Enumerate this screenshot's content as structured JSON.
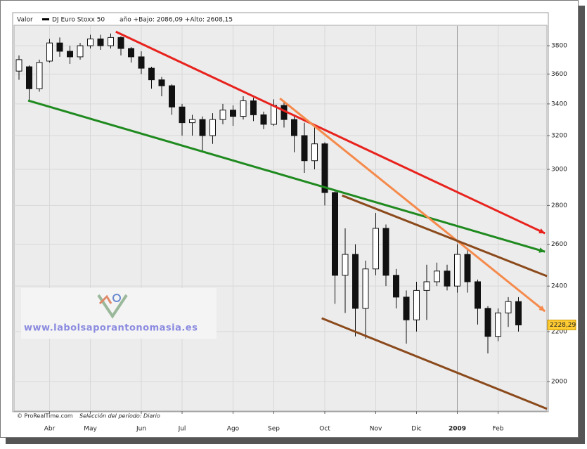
{
  "chart_data": {
    "type": "candlestick",
    "header_label": "Valor",
    "title": "DJ Euro Stoxx 50",
    "subtitle": "año +Bajo: 2086,09 +Alto: 2608,15",
    "categories": [
      null,
      null,
      null,
      "Abr",
      null,
      null,
      null,
      "May",
      null,
      null,
      null,
      null,
      "Jun",
      null,
      null,
      null,
      "Jul",
      null,
      null,
      null,
      null,
      "Ago",
      null,
      null,
      null,
      "Sep",
      null,
      null,
      null,
      null,
      "Oct",
      null,
      null,
      null,
      null,
      "Nov",
      null,
      null,
      null,
      "Dic",
      null,
      null,
      null,
      "2009",
      null,
      null,
      null,
      "Feb",
      null,
      null
    ],
    "open": [
      3620,
      3650,
      3500,
      3690,
      3820,
      3760,
      3720,
      3800,
      3850,
      3800,
      3860,
      3780,
      3720,
      3640,
      3560,
      3520,
      3380,
      3280,
      3300,
      3200,
      3300,
      3360,
      3320,
      3420,
      3330,
      3270,
      3390,
      3300,
      3200,
      3050,
      3150,
      2870,
      2450,
      2550,
      2300,
      2480,
      2680,
      2450,
      2350,
      2250,
      2380,
      2420,
      2470,
      2400,
      2550,
      2420,
      2300,
      2180,
      2280,
      2330
    ],
    "high": [
      3730,
      3660,
      3700,
      3850,
      3860,
      3800,
      3820,
      3880,
      3880,
      3890,
      3870,
      3790,
      3760,
      3650,
      3580,
      3530,
      3400,
      3330,
      3320,
      3340,
      3400,
      3390,
      3450,
      3440,
      3350,
      3430,
      3420,
      3320,
      3280,
      3250,
      3160,
      2880,
      2680,
      2600,
      2520,
      2760,
      2700,
      2480,
      2380,
      2420,
      2500,
      2510,
      2500,
      2600,
      2570,
      2430,
      2310,
      2300,
      2350,
      2350
    ],
    "low": [
      3560,
      3420,
      3480,
      3680,
      3720,
      3670,
      3700,
      3780,
      3770,
      3780,
      3730,
      3680,
      3600,
      3500,
      3450,
      3330,
      3200,
      3200,
      3100,
      3150,
      3270,
      3260,
      3300,
      3290,
      3240,
      3260,
      3250,
      3100,
      2980,
      3000,
      2800,
      2320,
      2280,
      2180,
      2170,
      2450,
      2400,
      2300,
      2150,
      2200,
      2250,
      2400,
      2380,
      2370,
      2370,
      2230,
      2110,
      2160,
      2220,
      2200
    ],
    "close": [
      3700,
      3500,
      3680,
      3820,
      3760,
      3720,
      3800,
      3850,
      3800,
      3860,
      3780,
      3720,
      3640,
      3560,
      3520,
      3380,
      3280,
      3300,
      3200,
      3300,
      3360,
      3320,
      3420,
      3330,
      3270,
      3390,
      3300,
      3200,
      3050,
      3150,
      2870,
      2450,
      2550,
      2300,
      2480,
      2680,
      2450,
      2350,
      2250,
      2380,
      2420,
      2470,
      2400,
      2550,
      2420,
      2300,
      2180,
      2280,
      2330,
      2228.29
    ],
    "last_price": {
      "value": 2228.29,
      "label": "2228,29"
    },
    "ylim": [
      1890,
      3946
    ],
    "yticks": [
      2000,
      2200,
      2400,
      2600,
      2800,
      3000,
      3200,
      3400,
      3600,
      3800
    ],
    "log_scale": true,
    "grid": true,
    "trendlines": [
      {
        "color": "#e8231e",
        "x": [
          9.5,
          51.6
        ],
        "y": [
          3903,
          2655
        ],
        "arrow": true
      },
      {
        "color": "#1f8a1f",
        "x": [
          0.9,
          51.6
        ],
        "y": [
          3422,
          2563
        ],
        "arrow": true
      },
      {
        "color": "#f58a4b",
        "x": [
          25.6,
          51.6
        ],
        "y": [
          3436,
          2287
        ],
        "arrow": true
      },
      {
        "color": "#8b4a1c",
        "x": [
          31.7,
          51.8
        ],
        "y": [
          2854,
          2446
        ],
        "arrow": false
      },
      {
        "color": "#8b4a1c",
        "x": [
          29.7,
          51.8
        ],
        "y": [
          2257,
          1898
        ],
        "arrow": false
      }
    ],
    "watermark": "www.labolsaporantonomasia.es",
    "footer": [
      "© ProRealTime.com",
      "Selección del período: Diario"
    ]
  }
}
